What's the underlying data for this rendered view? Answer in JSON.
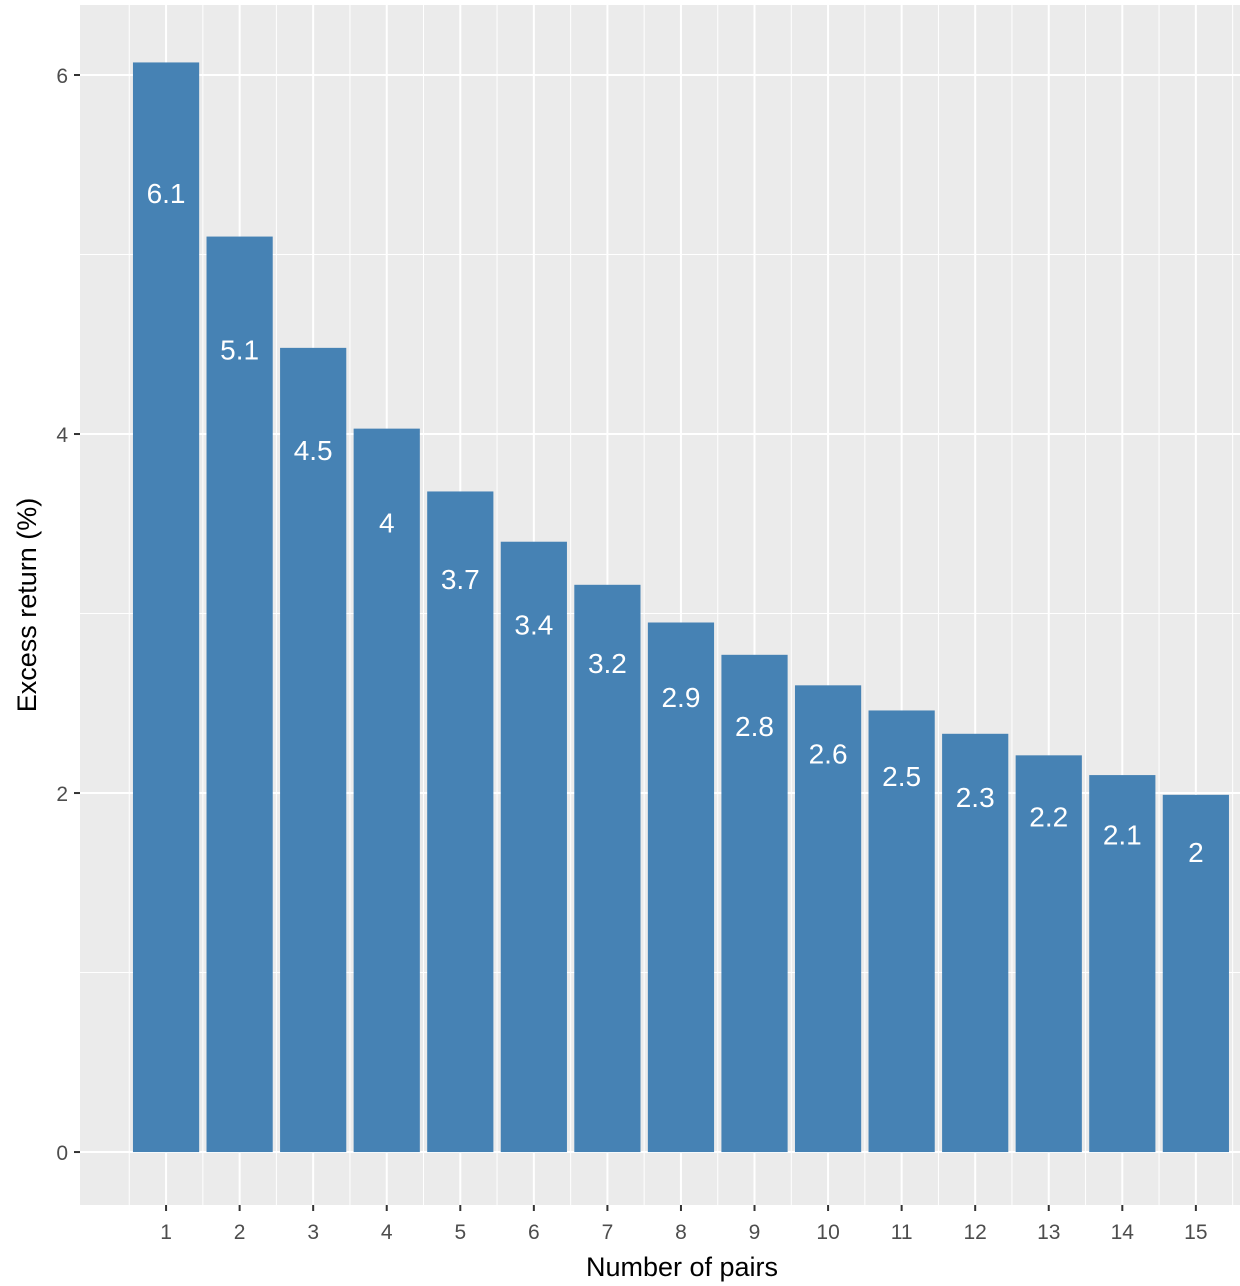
{
  "chart_data": {
    "type": "bar",
    "title": "",
    "xlabel": "Number of pairs",
    "ylabel": "Excess return (%)",
    "categories": [
      "1",
      "2",
      "3",
      "4",
      "5",
      "6",
      "7",
      "8",
      "9",
      "10",
      "11",
      "12",
      "13",
      "14",
      "15"
    ],
    "values": [
      6.07,
      5.1,
      4.48,
      4.03,
      3.68,
      3.4,
      3.16,
      2.95,
      2.77,
      2.6,
      2.46,
      2.33,
      2.21,
      2.1,
      1.99
    ],
    "data_labels": [
      "6.1",
      "5.1",
      "4.5",
      "4",
      "3.7",
      "3.4",
      "3.2",
      "2.9",
      "2.8",
      "2.6",
      "2.5",
      "2.3",
      "2.2",
      "2.1",
      "2"
    ],
    "yticks": [
      0,
      2,
      4,
      6
    ],
    "ytick_labels": [
      "0",
      "2",
      "4",
      "6"
    ],
    "ylim": [
      -0.295,
      6.39
    ],
    "grid": true,
    "legend": "none",
    "bar_color": "#4682B4",
    "panel_color": "#EBEBEB"
  }
}
